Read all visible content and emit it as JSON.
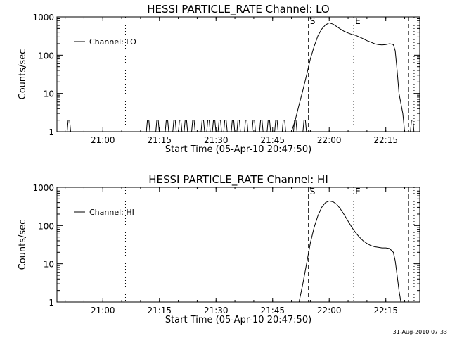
{
  "footer": {
    "timestamp": "31-Aug-2010 07:33"
  },
  "chart_data": [
    {
      "type": "line",
      "title": "HESSI PARTICLE_RATE Channel: LO",
      "xlabel": "Start Time (05-Apr-10 20:47:50)",
      "ylabel": "Counts/sec",
      "yscale": "log",
      "ylim": [
        1,
        1000
      ],
      "xlim": [
        "20:47:50",
        "22:24:00"
      ],
      "x_ticks": [
        "21:00",
        "21:15",
        "21:30",
        "21:45",
        "22:00",
        "22:15"
      ],
      "y_ticks": [
        "1",
        "10",
        "100",
        "1000"
      ],
      "legend": {
        "label": "Channel: LO",
        "position": "top-left"
      },
      "markers": [
        {
          "label": "S",
          "time": "21:54:30",
          "style": "dashed"
        },
        {
          "label": "E",
          "time": "22:06:30",
          "style": "dotted"
        },
        {
          "label": "",
          "time": "21:06:00",
          "style": "dotted"
        },
        {
          "label": "",
          "time": "22:21:00",
          "style": "dashed"
        },
        {
          "label": "",
          "time": "22:22:30",
          "style": "dotted"
        }
      ],
      "spikes": [
        "20:51:00",
        "21:12:00",
        "21:14:30",
        "21:17:00",
        "21:19:00",
        "21:20:30",
        "21:22:00",
        "21:24:00",
        "21:26:30",
        "21:28:00",
        "21:29:30",
        "21:31:00",
        "21:32:30",
        "21:34:30",
        "21:36:00",
        "21:38:00",
        "21:40:00",
        "21:42:00",
        "21:44:00",
        "21:46:00",
        "21:48:00",
        "21:51:00",
        "21:53:30",
        "22:22:00"
      ],
      "spike_value": 2,
      "series": [
        {
          "name": "Channel: LO",
          "points": [
            [
              "21:50:00",
              1
            ],
            [
              "21:51:00",
              2
            ],
            [
              "21:52:00",
              5
            ],
            [
              "21:53:00",
              12
            ],
            [
              "21:54:00",
              30
            ],
            [
              "21:55:00",
              80
            ],
            [
              "21:56:00",
              170
            ],
            [
              "21:57:00",
              320
            ],
            [
              "21:58:00",
              480
            ],
            [
              "21:59:00",
              620
            ],
            [
              "22:00:00",
              700
            ],
            [
              "22:01:00",
              650
            ],
            [
              "22:02:00",
              560
            ],
            [
              "22:03:00",
              480
            ],
            [
              "22:04:00",
              420
            ],
            [
              "22:05:00",
              380
            ],
            [
              "22:06:00",
              350
            ],
            [
              "22:07:00",
              330
            ],
            [
              "22:08:00",
              300
            ],
            [
              "22:09:00",
              270
            ],
            [
              "22:10:00",
              240
            ],
            [
              "22:11:00",
              220
            ],
            [
              "22:12:00",
              200
            ],
            [
              "22:13:00",
              190
            ],
            [
              "22:14:00",
              185
            ],
            [
              "22:15:00",
              190
            ],
            [
              "22:16:00",
              200
            ],
            [
              "22:17:00",
              190
            ],
            [
              "22:17:30",
              130
            ],
            [
              "22:18:00",
              40
            ],
            [
              "22:18:30",
              10
            ],
            [
              "22:19:30",
              3
            ],
            [
              "22:20:00",
              1
            ]
          ]
        }
      ]
    },
    {
      "type": "line",
      "title": "HESSI PARTICLE_RATE Channel: HI",
      "xlabel": "Start Time (05-Apr-10 20:47:50)",
      "ylabel": "Counts/sec",
      "yscale": "log",
      "ylim": [
        1,
        1000
      ],
      "xlim": [
        "20:47:50",
        "22:24:00"
      ],
      "x_ticks": [
        "21:00",
        "21:15",
        "21:30",
        "21:45",
        "22:00",
        "22:15"
      ],
      "y_ticks": [
        "1",
        "10",
        "100",
        "1000"
      ],
      "legend": {
        "label": "Channel: HI",
        "position": "top-left"
      },
      "markers": [
        {
          "label": "S",
          "time": "21:54:30",
          "style": "dashed"
        },
        {
          "label": "E",
          "time": "22:06:30",
          "style": "dotted"
        },
        {
          "label": "",
          "time": "21:06:00",
          "style": "dotted"
        },
        {
          "label": "",
          "time": "22:21:00",
          "style": "dashed"
        },
        {
          "label": "",
          "time": "22:22:30",
          "style": "dotted"
        }
      ],
      "spikes": [],
      "spike_value": 2,
      "series": [
        {
          "name": "Channel: HI",
          "points": [
            [
              "21:52:00",
              1
            ],
            [
              "21:53:00",
              3
            ],
            [
              "21:54:00",
              10
            ],
            [
              "21:55:00",
              35
            ],
            [
              "21:56:00",
              90
            ],
            [
              "21:57:00",
              180
            ],
            [
              "21:58:00",
              300
            ],
            [
              "21:59:00",
              400
            ],
            [
              "22:00:00",
              440
            ],
            [
              "22:01:00",
              420
            ],
            [
              "22:02:00",
              360
            ],
            [
              "22:03:00",
              270
            ],
            [
              "22:04:00",
              190
            ],
            [
              "22:05:00",
              130
            ],
            [
              "22:06:00",
              90
            ],
            [
              "22:07:00",
              65
            ],
            [
              "22:08:00",
              50
            ],
            [
              "22:09:00",
              40
            ],
            [
              "22:10:00",
              34
            ],
            [
              "22:11:00",
              30
            ],
            [
              "22:12:00",
              28
            ],
            [
              "22:13:00",
              27
            ],
            [
              "22:14:00",
              26
            ],
            [
              "22:15:00",
              26
            ],
            [
              "22:16:00",
              25
            ],
            [
              "22:17:00",
              20
            ],
            [
              "22:17:30",
              12
            ],
            [
              "22:18:00",
              5
            ],
            [
              "22:18:30",
              2
            ],
            [
              "22:19:00",
              1
            ]
          ]
        }
      ]
    }
  ]
}
